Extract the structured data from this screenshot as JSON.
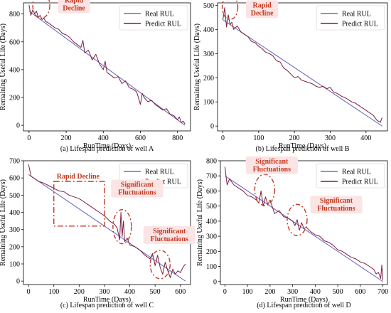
{
  "colors": {
    "real": "#6f6fc2",
    "predict": "#7a1f3d",
    "annotation": "#c23b22",
    "annotation_fill": "#fbe4e4",
    "frame": "#000000"
  },
  "chart_data": [
    {
      "type": "line",
      "caption": "(a) Lifespan prediction of well A",
      "xlabel": "RunTime (Days)",
      "ylabel": "Remaining Useful Life (Days)",
      "xlim": [
        -30,
        870
      ],
      "ylim": [
        -40,
        880
      ],
      "xticks": [
        0,
        200,
        400,
        600,
        800
      ],
      "yticks": [
        0,
        200,
        400,
        600,
        800
      ],
      "legend": "top-right",
      "series": [
        {
          "name": "Real RUL",
          "x": [
            0,
            840
          ],
          "y": [
            820,
            0
          ]
        },
        {
          "name": "Predict RUL",
          "x": [
            0,
            10,
            20,
            30,
            40,
            50,
            60,
            70,
            80,
            90,
            100,
            120,
            140,
            160,
            180,
            200,
            220,
            240,
            260,
            280,
            290,
            300,
            320,
            340,
            360,
            380,
            400,
            410,
            420,
            440,
            460,
            480,
            500,
            520,
            540,
            560,
            580,
            600,
            610,
            620,
            640,
            660,
            680,
            700,
            720,
            740,
            760,
            780,
            800,
            810,
            820,
            830,
            840
          ],
          "y": [
            865,
            790,
            830,
            800,
            820,
            775,
            790,
            760,
            770,
            745,
            740,
            720,
            700,
            690,
            660,
            650,
            630,
            600,
            580,
            560,
            610,
            520,
            540,
            470,
            510,
            440,
            400,
            460,
            380,
            360,
            340,
            350,
            300,
            320,
            270,
            260,
            240,
            150,
            230,
            200,
            170,
            180,
            150,
            130,
            110,
            120,
            80,
            70,
            40,
            60,
            20,
            30,
            10
          ]
        }
      ],
      "annotations": [
        {
          "text": "Rapid Decline",
          "x": 20,
          "y": 790
        }
      ]
    },
    {
      "type": "line",
      "caption": "(b) Lifespan prediction of well B",
      "xlabel": "RunTime (Days)",
      "ylabel": "Remaining Useful Life (Days)",
      "xlim": [
        -15,
        460
      ],
      "ylim": [
        -20,
        510
      ],
      "xticks": [
        0,
        100,
        200,
        300,
        400
      ],
      "yticks": [
        0,
        100,
        200,
        300,
        400,
        500
      ],
      "legend": "top-right",
      "series": [
        {
          "name": "Real RUL",
          "x": [
            0,
            445
          ],
          "y": [
            440,
            0
          ]
        },
        {
          "name": "Predict RUL",
          "x": [
            0,
            5,
            10,
            15,
            20,
            25,
            30,
            40,
            50,
            60,
            70,
            80,
            90,
            100,
            110,
            120,
            130,
            140,
            150,
            160,
            170,
            180,
            190,
            200,
            210,
            220,
            230,
            240,
            250,
            260,
            270,
            280,
            290,
            300,
            310,
            320,
            330,
            340,
            350,
            360,
            370,
            380,
            390,
            400,
            410,
            420,
            430,
            440,
            445
          ],
          "y": [
            440,
            490,
            410,
            460,
            420,
            430,
            400,
            415,
            390,
            380,
            370,
            350,
            345,
            330,
            320,
            305,
            300,
            290,
            270,
            265,
            240,
            230,
            215,
            200,
            205,
            190,
            185,
            180,
            175,
            165,
            160,
            165,
            155,
            160,
            140,
            135,
            125,
            118,
            110,
            100,
            95,
            85,
            75,
            65,
            55,
            45,
            25,
            15,
            35
          ]
        }
      ],
      "annotations": [
        {
          "text": "Rapid Decline",
          "x": 10,
          "y": 450
        }
      ]
    },
    {
      "type": "line",
      "caption": "(c) Lifespan prediction of well C",
      "xlabel": "RunTime (Days)",
      "ylabel": "Remaining Useful Life (Days)",
      "xlim": [
        -20,
        640
      ],
      "ylim": [
        -20,
        700
      ],
      "xticks": [
        0,
        100,
        200,
        300,
        400,
        500,
        600
      ],
      "yticks": [
        0,
        100,
        200,
        300,
        400,
        500,
        600,
        700
      ],
      "legend": "top-right",
      "series": [
        {
          "name": "Real RUL",
          "x": [
            0,
            620
          ],
          "y": [
            620,
            0
          ]
        },
        {
          "name": "Predict RUL",
          "x": [
            0,
            10,
            20,
            40,
            60,
            80,
            100,
            120,
            140,
            160,
            180,
            200,
            220,
            240,
            260,
            280,
            300,
            320,
            340,
            350,
            360,
            365,
            370,
            375,
            380,
            390,
            400,
            420,
            440,
            460,
            480,
            490,
            500,
            510,
            520,
            530,
            540,
            550,
            560,
            570,
            580,
            590,
            600,
            610,
            620
          ],
          "y": [
            680,
            610,
            600,
            580,
            570,
            555,
            540,
            525,
            520,
            500,
            490,
            480,
            460,
            440,
            420,
            400,
            380,
            350,
            330,
            310,
            240,
            400,
            260,
            350,
            230,
            250,
            210,
            200,
            180,
            150,
            130,
            160,
            90,
            150,
            80,
            40,
            110,
            60,
            20,
            70,
            40,
            60,
            50,
            80,
            100
          ]
        }
      ],
      "annotations": [
        {
          "text": "Rapid Decline",
          "x": 200,
          "y": 450
        },
        {
          "text": "Significant Fluctuations",
          "x": 370,
          "y": 300
        },
        {
          "text": "Significant Fluctuations",
          "x": 520,
          "y": 80
        }
      ]
    },
    {
      "type": "line",
      "caption": "(d) Lifespan prediction of well D",
      "xlabel": "RunTime (Days)",
      "ylabel": "Remaining Useful Life (Days)",
      "xlim": [
        -20,
        720
      ],
      "ylim": [
        -20,
        800
      ],
      "xticks": [
        0,
        100,
        200,
        300,
        400,
        500,
        600,
        700
      ],
      "yticks": [
        0,
        100,
        200,
        300,
        400,
        500,
        600,
        700,
        800
      ],
      "legend": "top-right",
      "series": [
        {
          "name": "Real RUL",
          "x": [
            0,
            700
          ],
          "y": [
            700,
            0
          ]
        },
        {
          "name": "Predict RUL",
          "x": [
            0,
            5,
            10,
            20,
            40,
            60,
            80,
            100,
            120,
            140,
            150,
            160,
            170,
            180,
            190,
            200,
            220,
            240,
            260,
            280,
            300,
            310,
            320,
            330,
            340,
            350,
            360,
            380,
            400,
            420,
            440,
            460,
            480,
            500,
            520,
            540,
            560,
            580,
            600,
            620,
            640,
            660,
            670,
            680,
            690,
            695,
            700
          ],
          "y": [
            760,
            700,
            640,
            680,
            640,
            620,
            600,
            570,
            560,
            540,
            520,
            600,
            500,
            560,
            510,
            540,
            450,
            470,
            430,
            420,
            400,
            370,
            410,
            340,
            390,
            350,
            360,
            330,
            310,
            300,
            270,
            260,
            240,
            210,
            200,
            180,
            160,
            150,
            130,
            120,
            100,
            80,
            50,
            60,
            20,
            110,
            10
          ]
        }
      ],
      "annotations": [
        {
          "text": "Significant Fluctuations",
          "x": 170,
          "y": 560
        },
        {
          "text": "Significant Fluctuations",
          "x": 320,
          "y": 370
        }
      ]
    }
  ]
}
